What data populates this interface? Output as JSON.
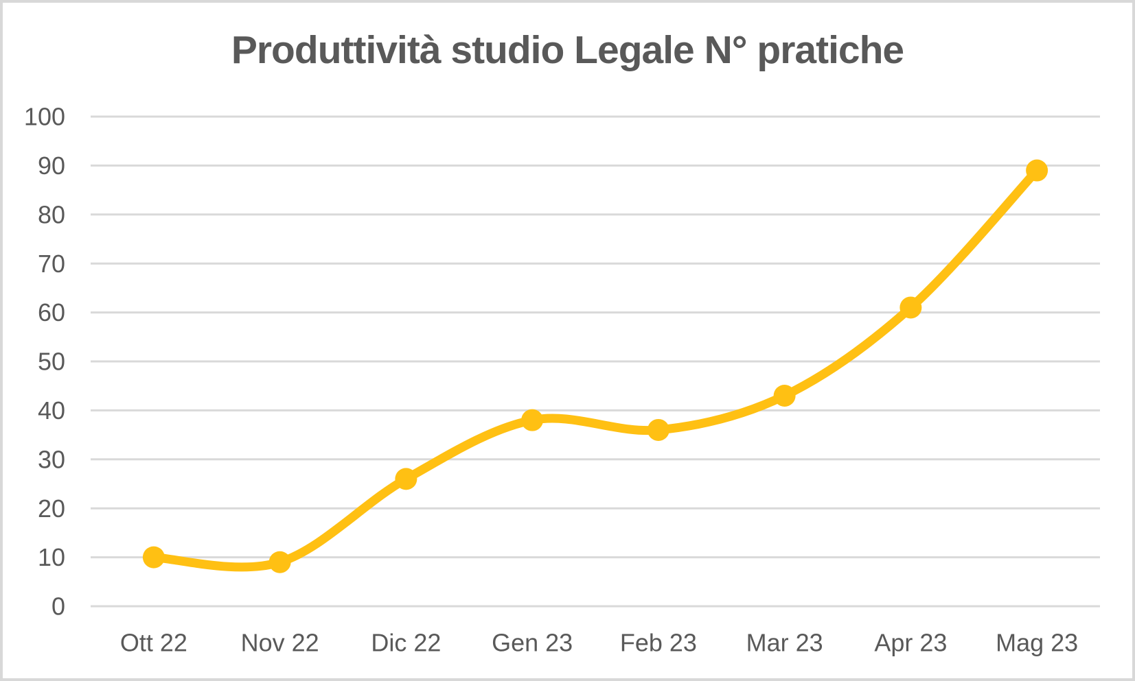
{
  "chart_data": {
    "type": "line",
    "title": "Produttività studio Legale N° pratiche",
    "categories": [
      "Ott 22",
      "Nov 22",
      "Dic 22",
      "Gen 23",
      "Feb 23",
      "Mar 23",
      "Apr 23",
      "Mag 23"
    ],
    "series": [
      {
        "values": [
          10,
          9,
          26,
          38,
          36,
          43,
          61,
          89
        ]
      }
    ],
    "xlabel": "",
    "ylabel": "",
    "ylim": [
      0,
      100
    ],
    "yticks": [
      0,
      10,
      20,
      30,
      40,
      50,
      60,
      70,
      80,
      90,
      100
    ],
    "grid": "horizontal",
    "legend": "none",
    "smooth": true,
    "marker": "circle",
    "colors": {
      "line": "#FFC013",
      "marker": "#FFC013",
      "title_text": "#595959",
      "axis_text": "#595959",
      "gridline": "#D9D9D9",
      "background": "#FFFFFF",
      "frame_border": "#D8D8D8"
    }
  }
}
